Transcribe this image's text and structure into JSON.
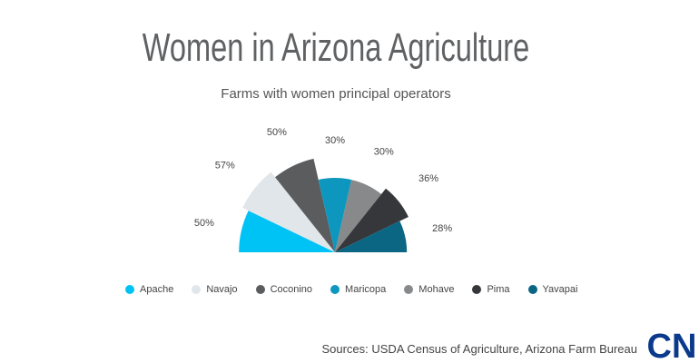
{
  "header": {
    "title": "Women in Arizona Agriculture",
    "subtitle": "Farms with women principal operators"
  },
  "chart_data": {
    "type": "pie",
    "variant": "half-rose",
    "categories": [
      "Apache",
      "Navajo",
      "Coconino",
      "Maricopa",
      "Mohave",
      "Pima",
      "Yavapai"
    ],
    "values": [
      50,
      57,
      50,
      30,
      30,
      36,
      28
    ],
    "value_labels": [
      "50%",
      "57%",
      "50%",
      "30%",
      "30%",
      "36%",
      "28%"
    ],
    "colors": [
      "#00c3f5",
      "#e1e6ea",
      "#5a5c5e",
      "#0e97be",
      "#87898b",
      "#35373a",
      "#0b6683"
    ],
    "legend_position": "bottom"
  },
  "footer": {
    "source": "Sources: USDA Census of Agriculture, Arizona Farm Bureau",
    "logo_text": "CN"
  }
}
